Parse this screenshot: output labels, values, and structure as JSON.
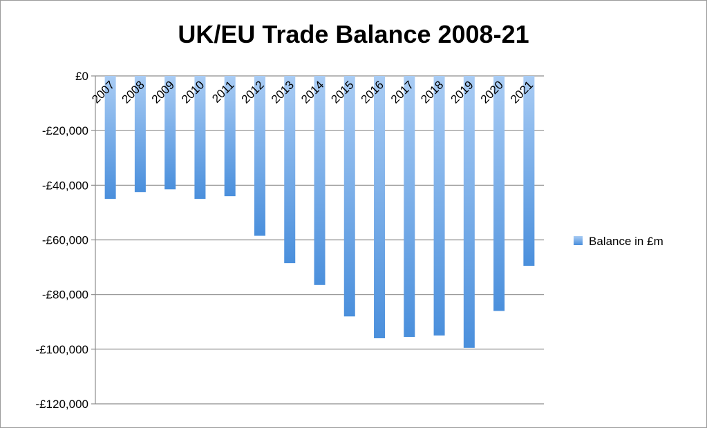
{
  "chart_data": {
    "type": "bar",
    "title": "UK/EU Trade Balance 2008-21",
    "categories": [
      "2007",
      "2008",
      "2009",
      "2010",
      "2011",
      "2012",
      "2013",
      "2014",
      "2015",
      "2016",
      "2017",
      "2018",
      "2019",
      "2020",
      "2021"
    ],
    "series": [
      {
        "name": "Balance in £m",
        "values": [
          -45000,
          -42500,
          -41500,
          -45000,
          -44000,
          -58500,
          -68500,
          -76500,
          -88000,
          -96000,
          -95500,
          -95000,
          -99500,
          -86000,
          -69500
        ],
        "color": "#5f9fe0"
      }
    ],
    "ylim": [
      -120000,
      0
    ],
    "yticks": [
      0,
      -20000,
      -40000,
      -60000,
      -80000,
      -100000,
      -120000
    ],
    "ytick_labels": [
      "£0",
      "-£20,000",
      "-£40,000",
      "-£60,000",
      "-£80,000",
      "-£100,000",
      "-£120,000"
    ],
    "grid": true,
    "legend_position": "right"
  }
}
